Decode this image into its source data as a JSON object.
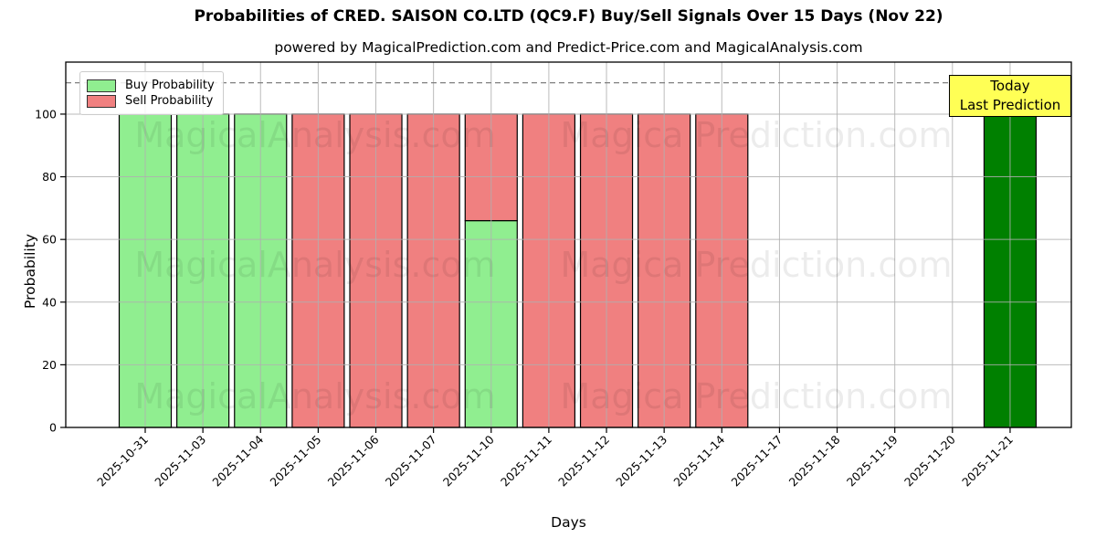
{
  "title": "Probabilities of CRED. SAISON CO.LTD (QC9.F) Buy/Sell Signals Over 15 Days (Nov 22)",
  "subtitle": "powered by MagicalPrediction.com and Predict-Price.com and MagicalAnalysis.com",
  "legend": {
    "items": [
      {
        "label": "Buy Probability",
        "color": "#90ee90"
      },
      {
        "label": "Sell Probability",
        "color": "#f08080"
      }
    ]
  },
  "annotation_box": {
    "lines": [
      "Today",
      "Last Prediction"
    ],
    "bg_color": "#ffff55",
    "border_color": "#000000"
  },
  "watermarks": {
    "left_text": "MagicalAnalysis.com",
    "right_text": "Magica Prediction.com"
  },
  "chart_data": {
    "type": "bar",
    "stacked": true,
    "title": "Probabilities of CRED. SAISON CO.LTD (QC9.F) Buy/Sell Signals Over 15 Days (Nov 22)",
    "xlabel": "Days",
    "ylabel": "Probability",
    "categories": [
      "2025-10-31",
      "2025-11-03",
      "2025-11-04",
      "2025-11-05",
      "2025-11-06",
      "2025-11-07",
      "2025-11-10",
      "2025-11-11",
      "2025-11-12",
      "2025-11-13",
      "2025-11-14",
      "2025-11-17",
      "2025-11-18",
      "2025-11-19",
      "2025-11-20",
      "2025-11-21"
    ],
    "series": [
      {
        "name": "Buy Probability",
        "color": "#90ee90",
        "values": [
          100,
          100,
          100,
          0,
          0,
          0,
          66,
          0,
          0,
          0,
          0,
          0,
          0,
          0,
          0,
          0
        ]
      },
      {
        "name": "Sell Probability",
        "color": "#f08080",
        "values": [
          0,
          0,
          0,
          100,
          100,
          100,
          34,
          100,
          100,
          100,
          100,
          0,
          0,
          0,
          0,
          0
        ]
      },
      {
        "name": "Today Last Prediction",
        "color": "#008000",
        "values": [
          0,
          0,
          0,
          0,
          0,
          0,
          0,
          0,
          0,
          0,
          0,
          0,
          0,
          0,
          0,
          100
        ]
      }
    ],
    "yticks": [
      0,
      20,
      40,
      60,
      80,
      100
    ],
    "ylim": [
      0,
      116.6
    ],
    "dashed_line_y": 110,
    "grid": true,
    "bar_edge_color": "#000000",
    "grid_color": "#b0b0b0",
    "dashed_line_color": "#7f7f7f",
    "legend_position": "upper left"
  }
}
